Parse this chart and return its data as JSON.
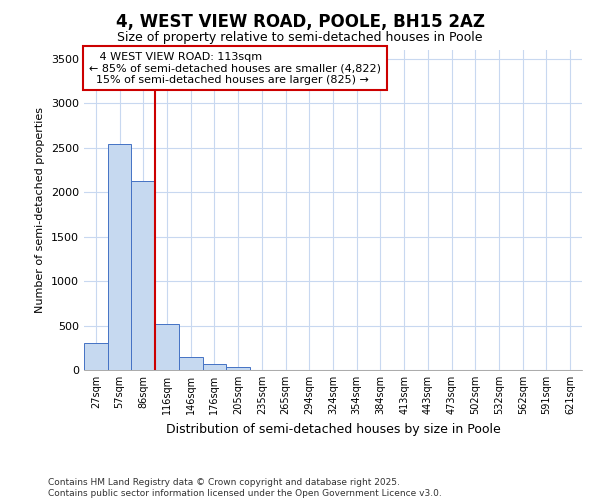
{
  "title": "4, WEST VIEW ROAD, POOLE, BH15 2AZ",
  "subtitle": "Size of property relative to semi-detached houses in Poole",
  "xlabel": "Distribution of semi-detached houses by size in Poole",
  "ylabel": "Number of semi-detached properties",
  "bar_labels": [
    "27sqm",
    "57sqm",
    "86sqm",
    "116sqm",
    "146sqm",
    "176sqm",
    "205sqm",
    "235sqm",
    "265sqm",
    "294sqm",
    "324sqm",
    "354sqm",
    "384sqm",
    "413sqm",
    "443sqm",
    "473sqm",
    "502sqm",
    "532sqm",
    "562sqm",
    "591sqm",
    "621sqm"
  ],
  "bar_values": [
    300,
    2540,
    2130,
    520,
    150,
    65,
    30,
    5,
    0,
    0,
    0,
    0,
    0,
    0,
    0,
    0,
    0,
    0,
    0,
    0,
    0
  ],
  "bar_color": "#c6d9f0",
  "bar_edge_color": "#4472c4",
  "property_sqm": 113,
  "property_label": "4 WEST VIEW ROAD: 113sqm",
  "pct_smaller": 85,
  "count_smaller": 4822,
  "pct_larger": 15,
  "count_larger": 825,
  "line_color": "#cc0000",
  "annotation_box_color": "#cc0000",
  "ylim": [
    0,
    3600
  ],
  "yticks": [
    0,
    500,
    1000,
    1500,
    2000,
    2500,
    3000,
    3500
  ],
  "footer_line1": "Contains HM Land Registry data © Crown copyright and database right 2025.",
  "footer_line2": "Contains public sector information licensed under the Open Government Licence v3.0.",
  "bg_color": "#ffffff",
  "plot_bg_color": "#ffffff",
  "grid_color": "#c8d8f0"
}
